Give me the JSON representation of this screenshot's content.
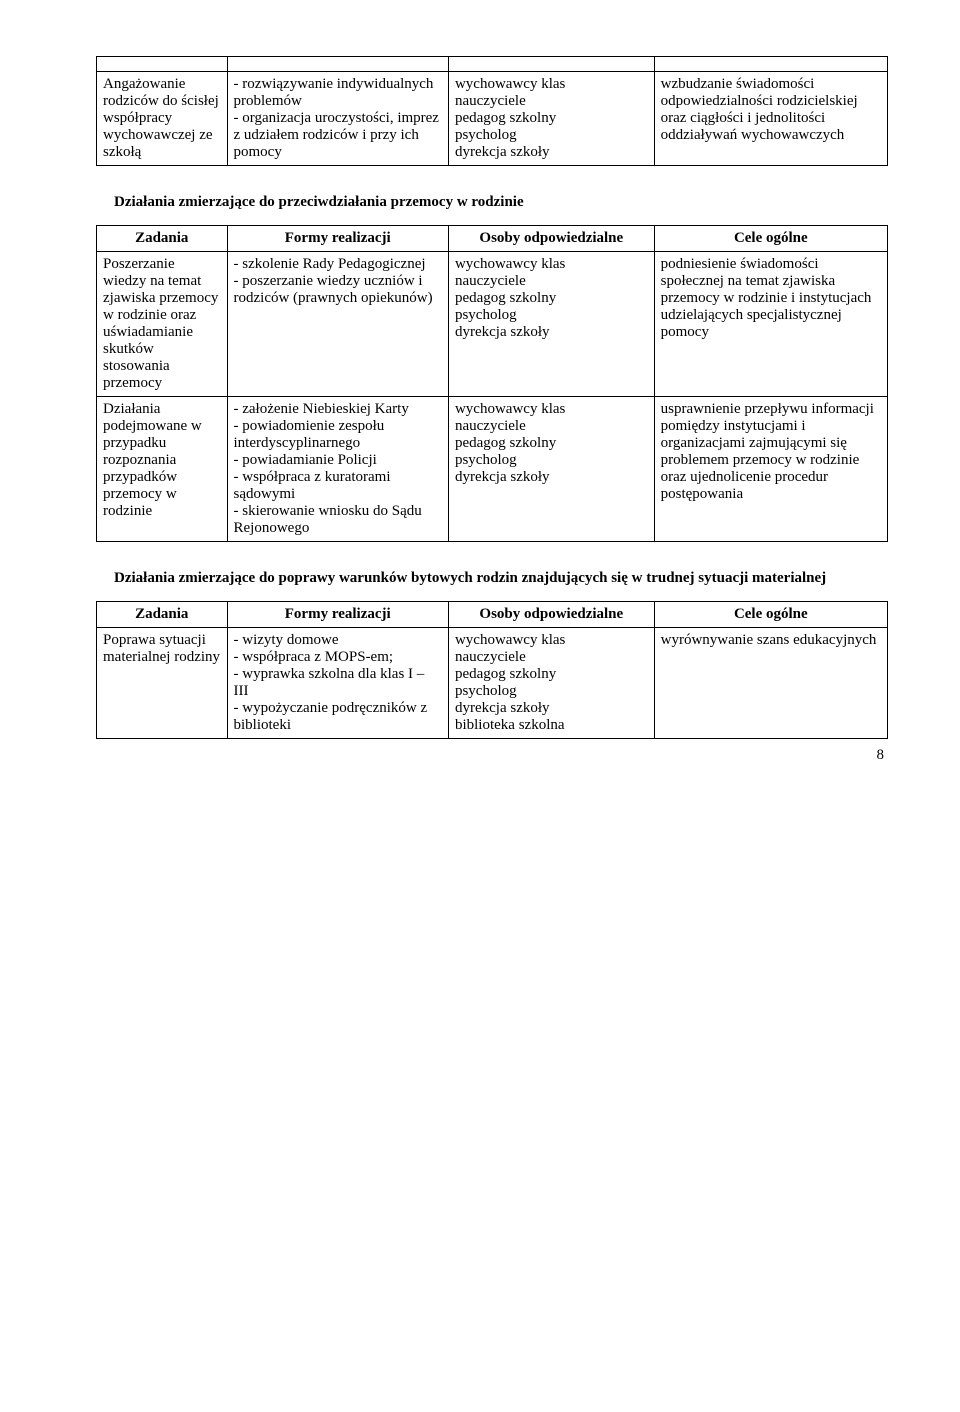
{
  "table1": {
    "rows": [
      {
        "c1": "Angażowanie rodziców do ścisłej współpracy wychowawczej ze szkołą",
        "c2": "- rozwiązywanie indywidualnych problemów\n- organizacja uroczystości, imprez z udziałem rodziców i przy ich pomocy",
        "c3": "wychowawcy klas\nnauczyciele\npedagog szkolny\npsycholog\ndyrekcja szkoły",
        "c4": "wzbudzanie świadomości odpowiedzialności rodzicielskiej oraz ciągłości i jednolitości oddziaływań wychowawczych"
      }
    ]
  },
  "section2_title": "Działania zmierzające do przeciwdziałania przemocy w rodzinie",
  "table2": {
    "headers": [
      "Zadania",
      "Formy realizacji",
      "Osoby odpowiedzialne",
      "Cele ogólne"
    ],
    "rows": [
      {
        "c1": "Poszerzanie wiedzy na temat zjawiska przemocy w rodzinie oraz uświadamianie skutków stosowania przemocy",
        "c2": "- szkolenie Rady Pedagogicznej\n- poszerzanie wiedzy uczniów i rodziców (prawnych opiekunów)",
        "c3": "wychowawcy klas\nnauczyciele\npedagog szkolny\npsycholog\ndyrekcja szkoły",
        "c4": "podniesienie świadomości społecznej na temat zjawiska przemocy w rodzinie i instytucjach udzielających specjalistycznej pomocy"
      },
      {
        "c1": "Działania podejmowane w przypadku rozpoznania przypadków przemocy w rodzinie",
        "c2": "- założenie Niebieskiej Karty\n- powiadomienie zespołu interdyscyplinarnego\n- powiadamianie Policji\n- współpraca z kuratorami sądowymi\n- skierowanie wniosku do Sądu Rejonowego",
        "c3": "wychowawcy klas\nnauczyciele\npedagog szkolny\npsycholog\ndyrekcja szkoły",
        "c4": "usprawnienie przepływu informacji pomiędzy instytucjami i organizacjami zajmującymi się problemem przemocy w rodzinie oraz ujednolicenie procedur postępowania"
      }
    ]
  },
  "section3_title": "Działania zmierzające do poprawy warunków bytowych rodzin znajdujących się w trudnej sytuacji materialnej",
  "table3": {
    "headers": [
      "Zadania",
      "Formy realizacji",
      "Osoby odpowiedzialne",
      "Cele ogólne"
    ],
    "rows": [
      {
        "c1": "Poprawa sytuacji materialnej rodziny",
        "c2": "- wizyty domowe\n- współpraca z MOPS-em;\n- wyprawka szkolna dla klas I – III\n- wypożyczanie podręczników z biblioteki",
        "c3": "wychowawcy klas\nnauczyciele\npedagog szkolny\npsycholog\ndyrekcja szkoły\nbiblioteka szkolna",
        "c4": "wyrównywanie szans edukacyjnych"
      }
    ]
  },
  "page_number": "8"
}
